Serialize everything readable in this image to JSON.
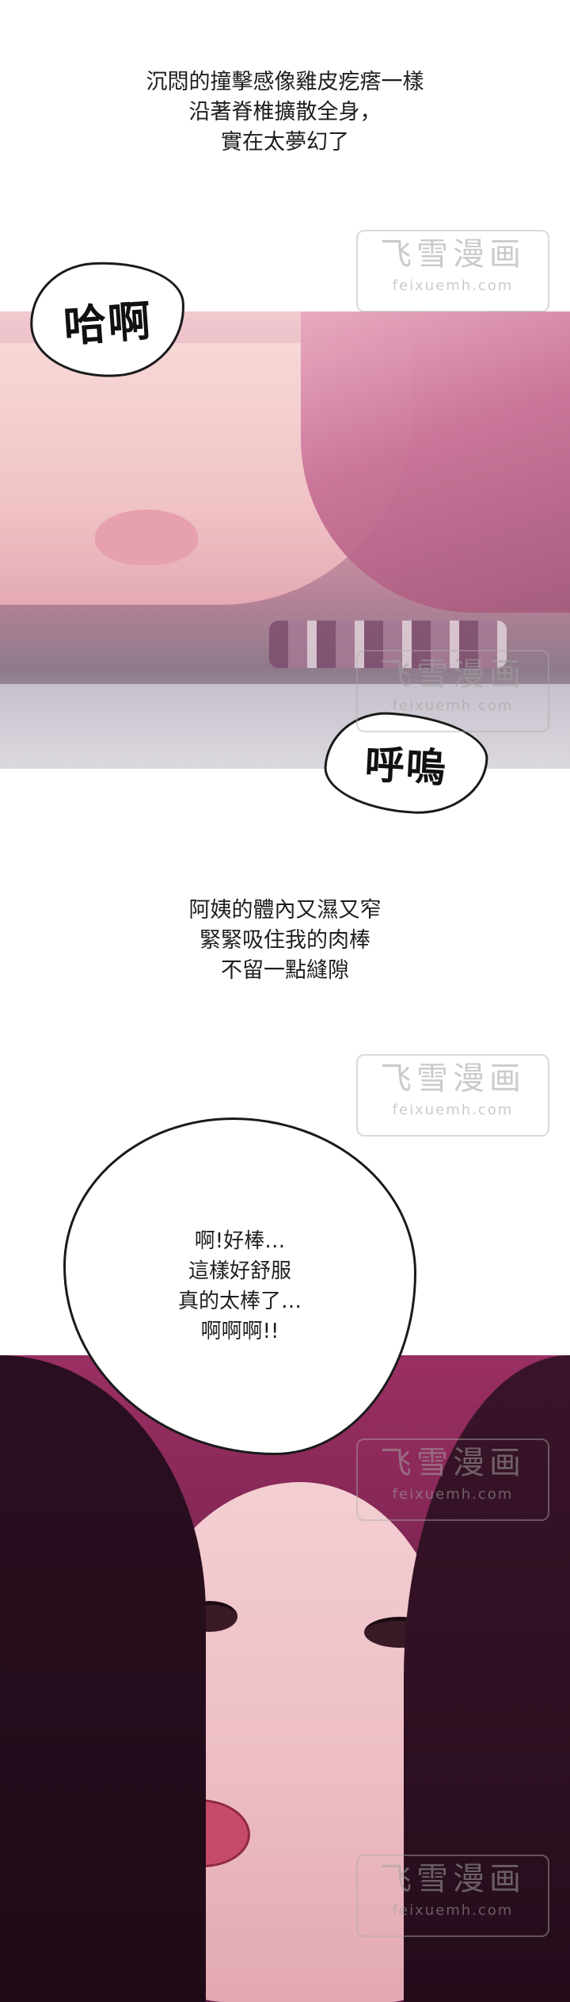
{
  "narration_top": {
    "lines": [
      "沉悶的撞擊感像雞皮疙瘩一樣",
      "沿著脊椎擴散全身，",
      "實在太夢幻了"
    ]
  },
  "sfx": {
    "panel1_top": "哈啊",
    "panel1_bottom": "呼嗚"
  },
  "narration_middle": {
    "lines": [
      "阿姨的體內又濕又窄",
      "緊緊吸住我的肉棒",
      "不留一點縫隙"
    ]
  },
  "speech_bubble": {
    "lines": [
      "啊!好棒…",
      "這樣好舒服",
      "真的太棒了…",
      "啊啊啊!!"
    ]
  },
  "watermark": {
    "logo": "飞雪漫画",
    "url": "feixuemh.com"
  }
}
